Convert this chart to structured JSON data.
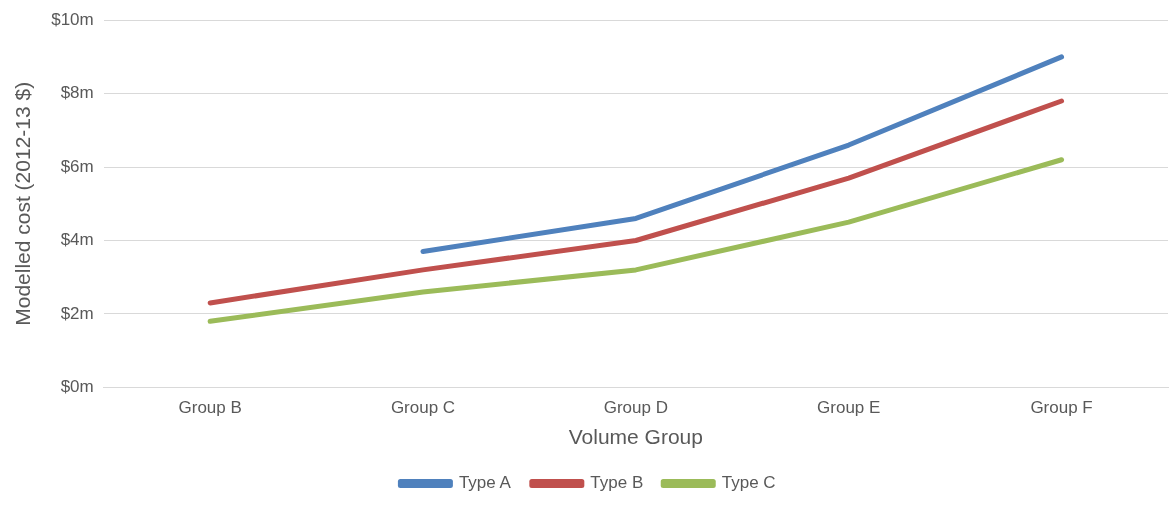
{
  "chart_data": {
    "type": "line",
    "xlabel": "Volume Group",
    "ylabel": "Modelled cost (2012-13 $)",
    "categories": [
      "Group B",
      "Group C",
      "Group D",
      "Group E",
      "Group F"
    ],
    "series": [
      {
        "name": "Type A",
        "color": "#4f81bd",
        "values": [
          null,
          3.7,
          4.6,
          6.6,
          9.0
        ]
      },
      {
        "name": "Type B",
        "color": "#c0504d",
        "values": [
          2.3,
          3.2,
          4.0,
          5.7,
          7.8
        ]
      },
      {
        "name": "Type C",
        "color": "#9bbb59",
        "values": [
          1.8,
          2.6,
          3.2,
          4.5,
          6.2
        ]
      }
    ],
    "ylim": [
      0,
      10
    ],
    "yticks": [
      {
        "value": 0,
        "label": "$0m"
      },
      {
        "value": 2,
        "label": "$2m"
      },
      {
        "value": 4,
        "label": "$4m"
      },
      {
        "value": 6,
        "label": "$6m"
      },
      {
        "value": 8,
        "label": "$8m"
      },
      {
        "value": 10,
        "label": "$10m"
      }
    ],
    "grid": "y",
    "legend": "bottom",
    "marker": "none",
    "line_style": "solid"
  }
}
